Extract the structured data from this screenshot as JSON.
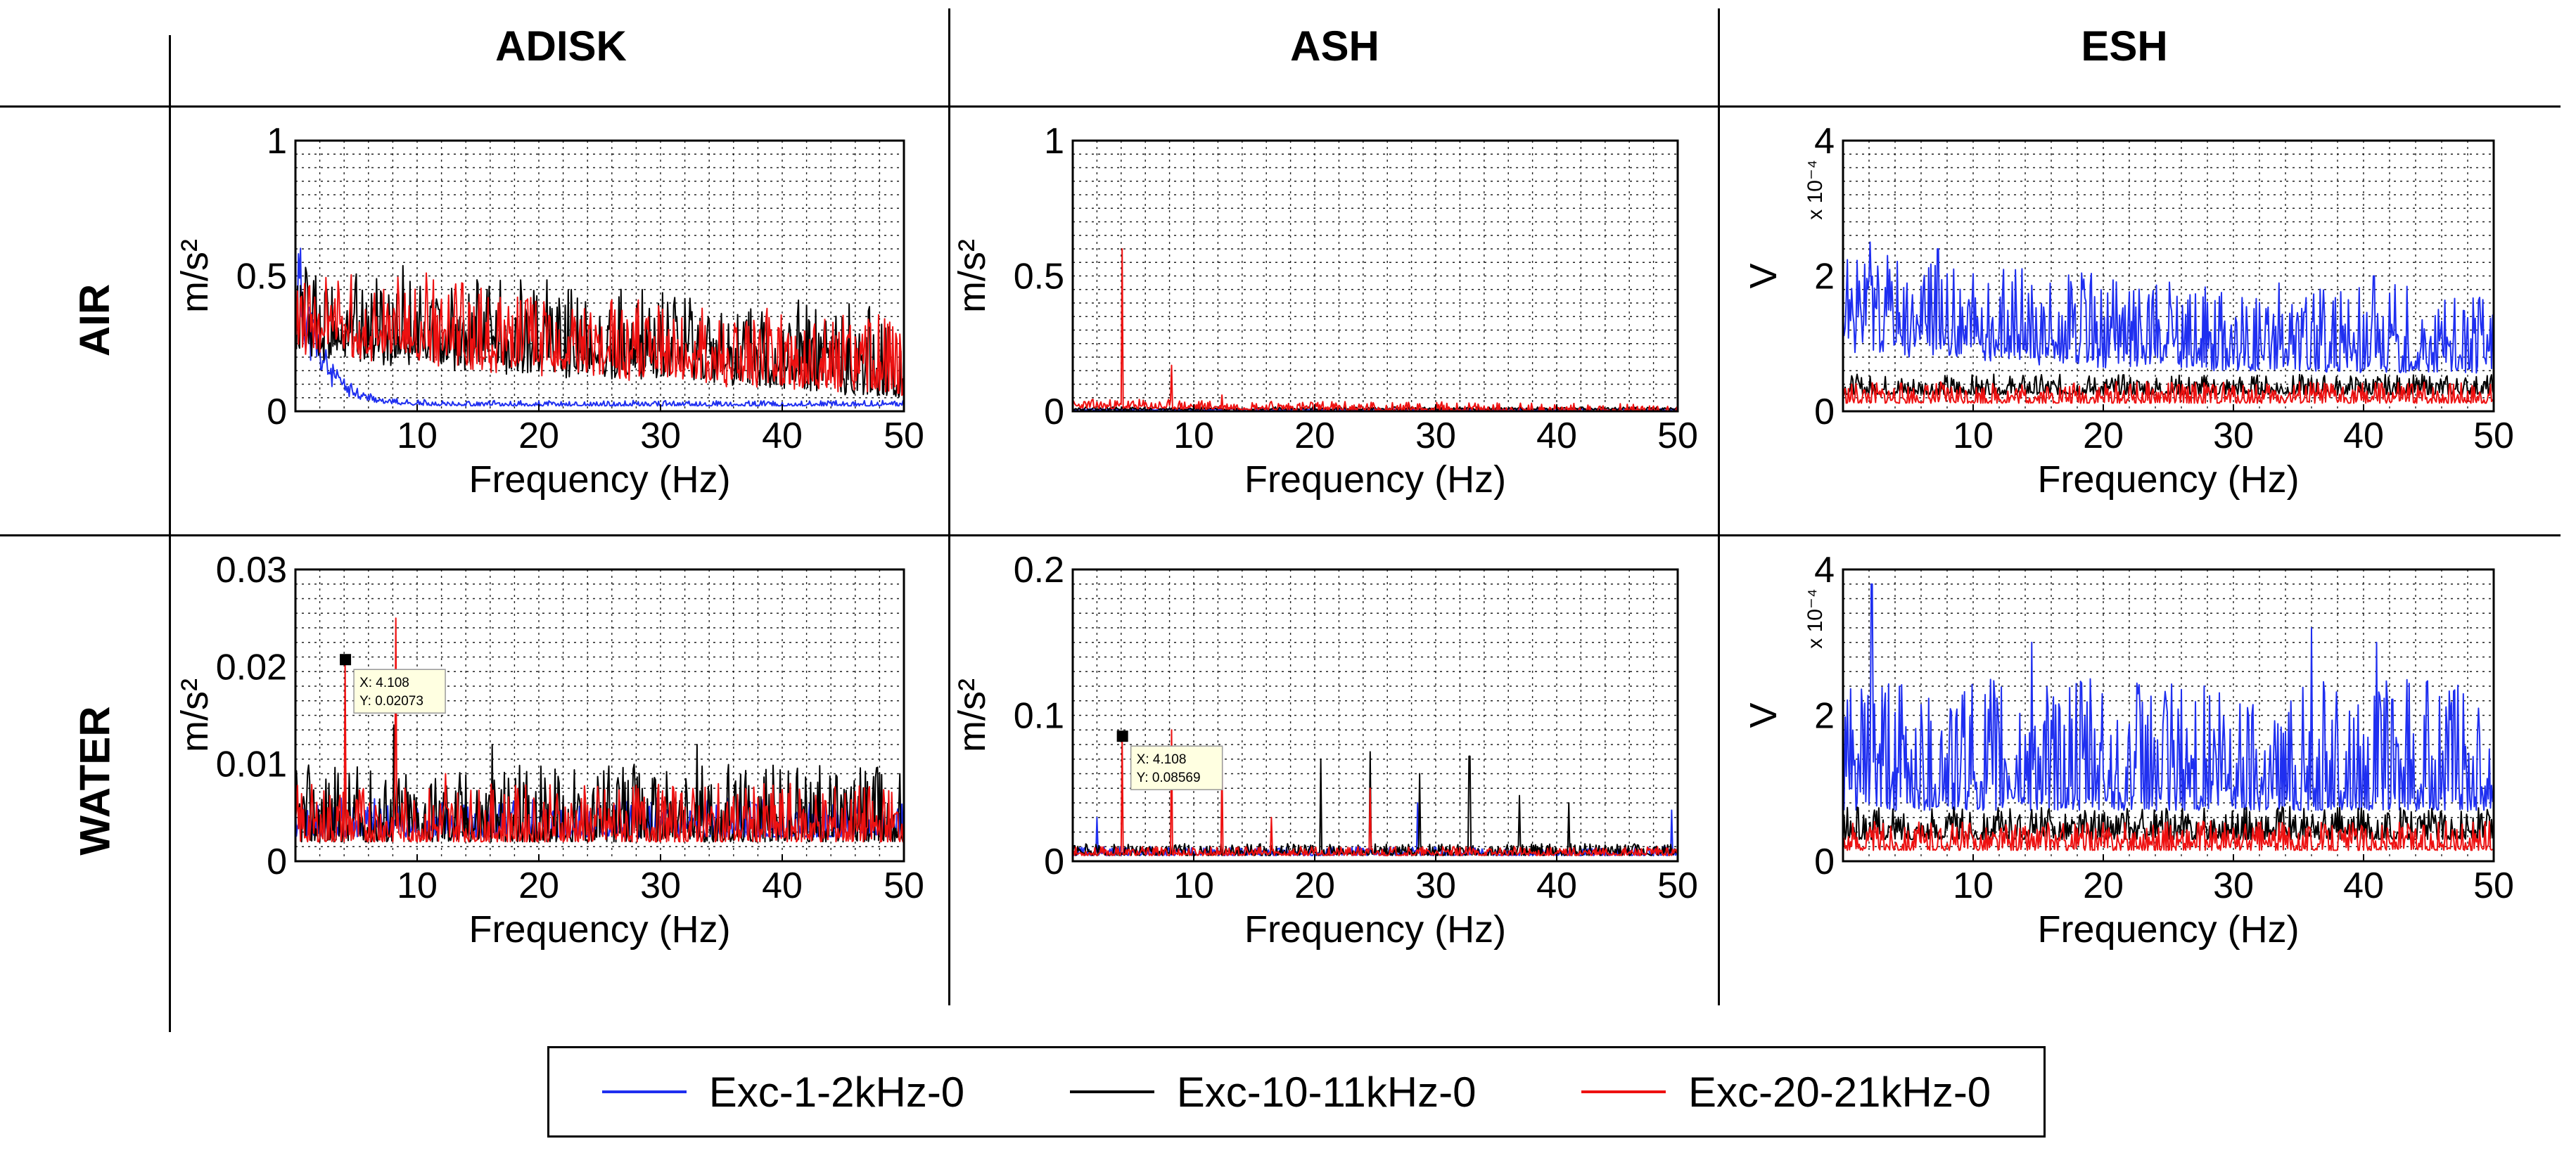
{
  "columns": [
    "ADISK",
    "ASH",
    "ESH"
  ],
  "rows": [
    "AIR",
    "WATER"
  ],
  "series_colors": {
    "blue": "#1f2ff0",
    "black": "#000000",
    "red": "#ee1111"
  },
  "legend": [
    {
      "name": "Exc-1-2kHz-0",
      "color": "#1f2ff0"
    },
    {
      "name": "Exc-10-11kHz-0",
      "color": "#000000"
    },
    {
      "name": "Exc-20-21kHz-0",
      "color": "#ee1111"
    }
  ],
  "chart_data": [
    {
      "type": "line",
      "row": "AIR",
      "column": "ADISK",
      "xlabel": "Frequency (Hz)",
      "ylabel": "m/s²",
      "xlim": [
        0,
        50
      ],
      "ylim": [
        0,
        1
      ],
      "grid": true,
      "xticks": [
        "10",
        "20",
        "30",
        "40",
        "50"
      ],
      "yticks": [
        "0",
        "0.5",
        "1"
      ],
      "yexp": "",
      "series": [
        {
          "name": "Exc-1-2kHz-0",
          "color": "#1f2ff0",
          "base": 0.02,
          "noise": 0.02,
          "peak_start": 0.72,
          "decay": 2.0,
          "seed": 11
        },
        {
          "name": "Exc-10-11kHz-0",
          "color": "#000000",
          "base": 0.13,
          "noise": 0.32,
          "peak_start": 0.15,
          "decay": 40,
          "slope": -0.002,
          "seed": 12
        },
        {
          "name": "Exc-20-21kHz-0",
          "color": "#ee1111",
          "base": 0.12,
          "noise": 0.28,
          "peak_start": 0.2,
          "decay": 30,
          "slope": -0.0016,
          "seed": 13
        }
      ],
      "datatip": null
    },
    {
      "type": "line",
      "row": "AIR",
      "column": "ASH",
      "xlabel": "Frequency (Hz)",
      "ylabel": "m/s²",
      "xlim": [
        0,
        50
      ],
      "ylim": [
        0,
        1
      ],
      "grid": true,
      "xticks": [
        "10",
        "20",
        "30",
        "40",
        "50"
      ],
      "yticks": [
        "0",
        "0.5",
        "1"
      ],
      "yexp": "",
      "series": [
        {
          "name": "Exc-1-2kHz-0",
          "color": "#1f2ff0",
          "base": 0.004,
          "noise": 0.006,
          "seed": 21
        },
        {
          "name": "Exc-10-11kHz-0",
          "color": "#000000",
          "base": 0.006,
          "noise": 0.01,
          "seed": 22
        },
        {
          "name": "Exc-20-21kHz-0",
          "color": "#ee1111",
          "base": 0.012,
          "noise": 0.035,
          "slope": -0.0004,
          "seed": 23,
          "spikes": [
            [
              4.1,
              0.6
            ],
            [
              8.2,
              0.17
            ],
            [
              12.3,
              0.06
            ]
          ]
        }
      ],
      "datatip": null
    },
    {
      "type": "line",
      "row": "AIR",
      "column": "ESH",
      "xlabel": "Frequency (Hz)",
      "ylabel": "V",
      "xlim": [
        0,
        50
      ],
      "ylim": [
        0,
        4
      ],
      "grid": true,
      "xticks": [
        "10",
        "20",
        "30",
        "40",
        "50"
      ],
      "yticks": [
        "0",
        "2",
        "4"
      ],
      "yexp": "x 10⁻⁴",
      "series": [
        {
          "name": "Exc-1-2kHz-0",
          "color": "#1f2ff0",
          "base": 0.55,
          "noise": 1.3,
          "peak_start": 0.8,
          "decay": 15,
          "seed": 31,
          "spikes": [
            [
              40.8,
              2.0
            ],
            [
              2.1,
              2.5
            ],
            [
              7.3,
              2.4
            ]
          ]
        },
        {
          "name": "Exc-10-11kHz-0",
          "color": "#000000",
          "base": 0.25,
          "noise": 0.3,
          "seed": 32
        },
        {
          "name": "Exc-20-21kHz-0",
          "color": "#ee1111",
          "base": 0.12,
          "noise": 0.32,
          "seed": 33
        }
      ],
      "datatip": null
    },
    {
      "type": "line",
      "row": "WATER",
      "column": "ADISK",
      "xlabel": "Frequency (Hz)",
      "ylabel": "m/s²",
      "xlim": [
        0,
        50
      ],
      "ylim": [
        0,
        0.03
      ],
      "grid": true,
      "xticks": [
        "10",
        "20",
        "30",
        "40",
        "50"
      ],
      "yticks": [
        "0",
        "0.01",
        "0.02",
        "0.03"
      ],
      "yexp": "",
      "series": [
        {
          "name": "Exc-1-2kHz-0",
          "color": "#1f2ff0",
          "base": 0.0025,
          "noise": 0.004,
          "seed": 41
        },
        {
          "name": "Exc-10-11kHz-0",
          "color": "#000000",
          "base": 0.002,
          "noise": 0.008,
          "seed": 42,
          "spikes": [
            [
              8.1,
              0.014
            ],
            [
              16.2,
              0.012
            ],
            [
              33.0,
              0.012
            ]
          ]
        },
        {
          "name": "Exc-20-21kHz-0",
          "color": "#ee1111",
          "base": 0.002,
          "noise": 0.006,
          "seed": 43,
          "spikes": [
            [
              4.108,
              0.02073
            ],
            [
              8.25,
              0.025
            ],
            [
              12.3,
              0.009
            ]
          ]
        }
      ],
      "datatip": {
        "x": 4.108,
        "y": 0.02073,
        "line1": "X: 4.108",
        "line2": "Y: 0.02073"
      }
    },
    {
      "type": "line",
      "row": "WATER",
      "column": "ASH",
      "xlabel": "Frequency (Hz)",
      "ylabel": "m/s²",
      "xlim": [
        0,
        50
      ],
      "ylim": [
        0,
        0.2
      ],
      "grid": true,
      "xticks": [
        "10",
        "20",
        "30",
        "40",
        "50"
      ],
      "yticks": [
        "0",
        "0.1",
        "0.2"
      ],
      "yexp": "",
      "series": [
        {
          "name": "Exc-1-2kHz-0",
          "color": "#1f2ff0",
          "base": 0.004,
          "noise": 0.006,
          "seed": 51,
          "spikes": [
            [
              2.0,
              0.03
            ],
            [
              28.5,
              0.04
            ],
            [
              49.5,
              0.035
            ]
          ]
        },
        {
          "name": "Exc-10-11kHz-0",
          "color": "#000000",
          "base": 0.004,
          "noise": 0.008,
          "seed": 52,
          "spikes": [
            [
              20.5,
              0.07
            ],
            [
              24.6,
              0.075
            ],
            [
              28.7,
              0.06
            ],
            [
              32.8,
              0.072
            ],
            [
              36.9,
              0.045
            ],
            [
              41.0,
              0.04
            ]
          ]
        },
        {
          "name": "Exc-20-21kHz-0",
          "color": "#ee1111",
          "base": 0.004,
          "noise": 0.006,
          "seed": 53,
          "spikes": [
            [
              4.108,
              0.08569
            ],
            [
              8.2,
              0.09
            ],
            [
              12.3,
              0.07
            ],
            [
              16.4,
              0.03
            ],
            [
              24.6,
              0.05
            ]
          ]
        }
      ],
      "datatip": {
        "x": 4.108,
        "y": 0.08569,
        "line1": "X: 4.108",
        "line2": "Y: 0.08569"
      }
    },
    {
      "type": "line",
      "row": "WATER",
      "column": "ESH",
      "xlabel": "Frequency (Hz)",
      "ylabel": "V",
      "xlim": [
        0,
        50
      ],
      "ylim": [
        0,
        4
      ],
      "grid": true,
      "xticks": [
        "10",
        "20",
        "30",
        "40",
        "50"
      ],
      "yticks": [
        "0",
        "2",
        "4"
      ],
      "yexp": "x 10⁻⁴",
      "series": [
        {
          "name": "Exc-1-2kHz-0",
          "color": "#1f2ff0",
          "base": 0.7,
          "noise": 1.8,
          "seed": 61,
          "spikes": [
            [
              2.2,
              3.8
            ],
            [
              36.0,
              3.2
            ],
            [
              41.0,
              3.0
            ],
            [
              14.5,
              3.0
            ]
          ]
        },
        {
          "name": "Exc-10-11kHz-0",
          "color": "#000000",
          "base": 0.3,
          "noise": 0.45,
          "seed": 62
        },
        {
          "name": "Exc-20-21kHz-0",
          "color": "#ee1111",
          "base": 0.15,
          "noise": 0.4,
          "seed": 63
        }
      ],
      "datatip": null
    }
  ]
}
